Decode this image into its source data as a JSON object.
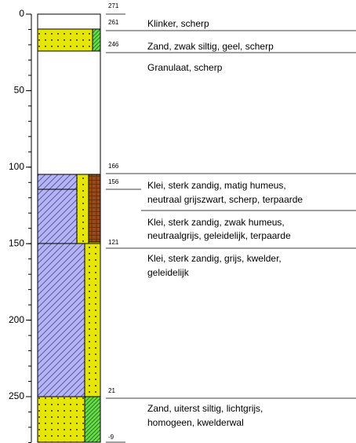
{
  "depth_axis": {
    "ticks": [
      0,
      50,
      100,
      150,
      200,
      250
    ]
  },
  "layers": [
    {
      "elevation": 271
    },
    {
      "elevation": 261,
      "description": [
        "Klinker, scherp"
      ]
    },
    {
      "elevation": 246,
      "description": [
        "Zand, zwak siltig, geel, scherp"
      ]
    },
    {
      "description": [
        "Granulaat, scherp"
      ]
    },
    {
      "elevation": 166
    },
    {
      "elevation": 156,
      "description": [
        "Klei, sterk zandig, matig humeus,",
        "neutraal grijszwart, scherp, terpaarde"
      ]
    },
    {
      "description": [
        "Klei, sterk zandig, zwak humeus,",
        "neutraalgrijs, geleidelijk, terpaarde"
      ]
    },
    {
      "elevation": 121,
      "description": [
        "Klei, sterk zandig, grijs, kwelder,",
        "geleidelijk"
      ]
    },
    {
      "elevation": 21,
      "description": [
        "Zand, uiterst siltig, lichtgrijs,",
        "homogeen, kwelderwal"
      ]
    },
    {
      "elevation": -9
    }
  ]
}
